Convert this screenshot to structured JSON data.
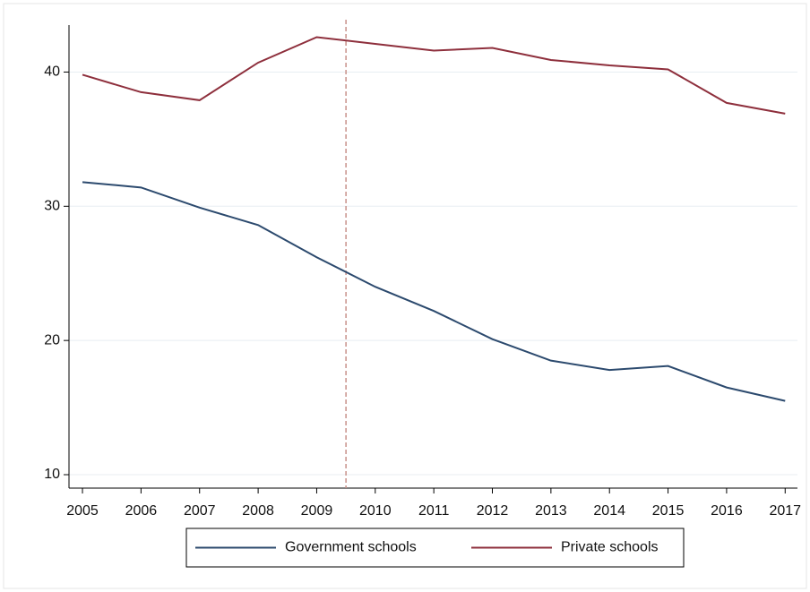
{
  "chart_data": {
    "type": "line",
    "x": [
      2005,
      2006,
      2007,
      2008,
      2009,
      2010,
      2011,
      2012,
      2013,
      2014,
      2015,
      2016,
      2017
    ],
    "series": [
      {
        "name": "Government schools",
        "color": "#2c4a6e",
        "values": [
          31.8,
          31.4,
          29.9,
          28.6,
          26.2,
          24.0,
          22.2,
          20.1,
          18.5,
          17.8,
          18.1,
          16.5,
          15.5
        ]
      },
      {
        "name": "Private schools",
        "color": "#8e2f3c",
        "values": [
          39.8,
          38.5,
          37.9,
          40.7,
          42.6,
          42.1,
          41.6,
          41.8,
          40.9,
          40.5,
          40.2,
          37.7,
          36.9
        ]
      }
    ],
    "xlim": [
      2004.77,
      2017.21
    ],
    "xticks": [
      2005,
      2006,
      2007,
      2008,
      2009,
      2010,
      2011,
      2012,
      2013,
      2014,
      2015,
      2016,
      2017
    ],
    "ylim": [
      9,
      43.5
    ],
    "yticks": [
      10,
      20,
      30,
      40
    ],
    "grid": true,
    "vline": 2009.5,
    "vline_color": "#c8918a",
    "legend": "bottom"
  }
}
